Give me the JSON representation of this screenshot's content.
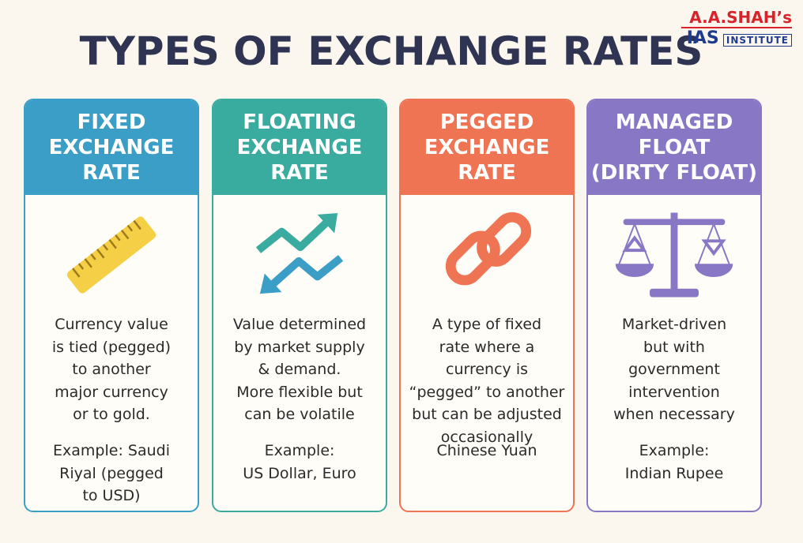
{
  "title": "TYPES OF EXCHANGE RATES",
  "logo": {
    "name": "A.A.SHAH’s",
    "prefix": "IAS",
    "suffix": "INSTITUTE"
  },
  "cards": [
    {
      "heading": [
        "FIXED",
        "EXCHANGE",
        "RATE"
      ],
      "description": [
        "Currency value",
        "is tied (pegged)",
        "to another",
        "major currency",
        "or to gold."
      ],
      "example": [
        "Example: Saudi",
        "Riyal (pegged",
        "to USD)"
      ]
    },
    {
      "heading": [
        "FLOATING",
        "EXCHANGE",
        "RATE"
      ],
      "description": [
        "Value determined",
        "by market supply",
        "& demand.",
        "More flexible but",
        "can be volatile"
      ],
      "example": [
        "Example:",
        "US Dollar, Euro"
      ]
    },
    {
      "heading": [
        "PEGGED",
        "EXCHANGE",
        "RATE"
      ],
      "description": [
        "A type of fixed",
        "rate where a",
        "currency is",
        "“pegged” to another",
        "but can be adjusted",
        "occasionally"
      ],
      "example": [
        "Chinese Yuan"
      ]
    },
    {
      "heading": [
        "MANAGED",
        "FLOAT",
        "(DIRTY FLOAT)"
      ],
      "description": [
        "Market-driven",
        "but with",
        "government",
        "intervention",
        "when necessary"
      ],
      "example": [
        "Example:",
        "Indian Rupee"
      ]
    }
  ]
}
